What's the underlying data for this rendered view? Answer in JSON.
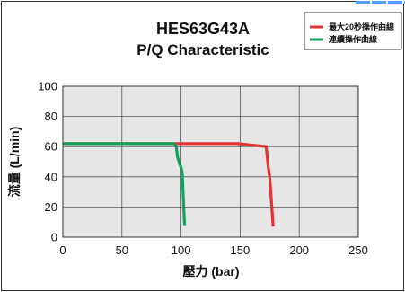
{
  "chart_data": {
    "type": "line",
    "title": "HES63G43A",
    "subtitle": "P/Q Characteristic",
    "xlabel": "壓力 (bar)",
    "ylabel": "流量 (L/min)",
    "xlim": [
      0,
      250
    ],
    "ylim": [
      0,
      100
    ],
    "xticks": [
      0,
      50,
      100,
      150,
      200,
      250
    ],
    "yticks": [
      0,
      20,
      40,
      60,
      80,
      100
    ],
    "grid": true,
    "legend_position": "top-right",
    "series": [
      {
        "name": "最大20秒操作曲線",
        "color": "#e53131",
        "points": [
          [
            0,
            62
          ],
          [
            148,
            62
          ],
          [
            172,
            60
          ],
          [
            174,
            45
          ],
          [
            175,
            40
          ],
          [
            178,
            7
          ]
        ]
      },
      {
        "name": "連續操作曲線",
        "color": "#12a05a",
        "points": [
          [
            0,
            62
          ],
          [
            94,
            62
          ],
          [
            96,
            60
          ],
          [
            97,
            53
          ],
          [
            100,
            46
          ],
          [
            101,
            43
          ],
          [
            103,
            8
          ]
        ]
      }
    ]
  }
}
